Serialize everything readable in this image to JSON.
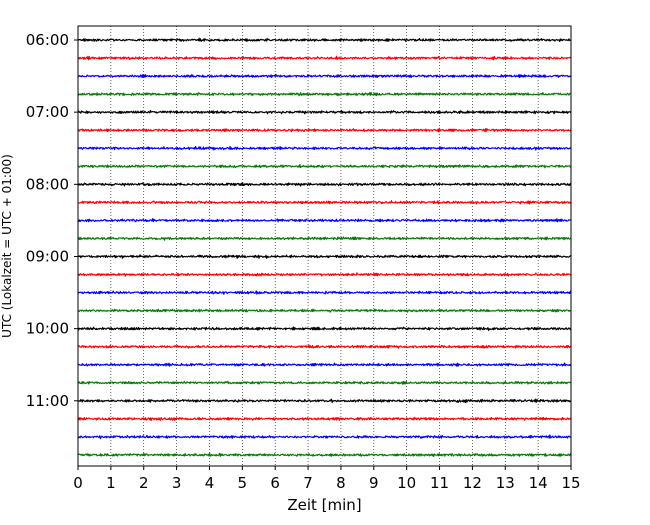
{
  "chart_data": {
    "type": "line",
    "title": "",
    "xlabel": "Zeit  [min]",
    "ylabel": "UTC (Lokalzeit = UTC + 01:00)",
    "xlim": [
      0,
      15
    ],
    "x_ticks": [
      0,
      1,
      2,
      3,
      4,
      5,
      6,
      7,
      8,
      9,
      10,
      11,
      12,
      13,
      14,
      15
    ],
    "x_tick_labels": [
      "0",
      "1",
      "2",
      "3",
      "4",
      "5",
      "6",
      "7",
      "8",
      "9",
      "10",
      "11",
      "12",
      "13",
      "14",
      "15"
    ],
    "y_tick_labels": [
      "06:00",
      "07:00",
      "08:00",
      "09:00",
      "10:00",
      "11:00"
    ],
    "y_tick_traces": [
      0,
      4,
      8,
      12,
      16,
      20
    ],
    "trace_interval_minutes": 15,
    "grid": "vertical dotted at each minute",
    "legend": "none",
    "series_color_cycle": [
      "#000000",
      "#ff0000",
      "#0000ff",
      "#008000"
    ],
    "series": [
      {
        "start": "06:00",
        "color": "#000000"
      },
      {
        "start": "06:15",
        "color": "#ff0000"
      },
      {
        "start": "06:30",
        "color": "#0000ff"
      },
      {
        "start": "06:45",
        "color": "#008000"
      },
      {
        "start": "07:00",
        "color": "#000000"
      },
      {
        "start": "07:15",
        "color": "#ff0000"
      },
      {
        "start": "07:30",
        "color": "#0000ff"
      },
      {
        "start": "07:45",
        "color": "#008000"
      },
      {
        "start": "08:00",
        "color": "#000000"
      },
      {
        "start": "08:15",
        "color": "#ff0000"
      },
      {
        "start": "08:30",
        "color": "#0000ff"
      },
      {
        "start": "08:45",
        "color": "#008000"
      },
      {
        "start": "09:00",
        "color": "#000000"
      },
      {
        "start": "09:15",
        "color": "#ff0000"
      },
      {
        "start": "09:30",
        "color": "#0000ff"
      },
      {
        "start": "09:45",
        "color": "#008000"
      },
      {
        "start": "10:00",
        "color": "#000000"
      },
      {
        "start": "10:15",
        "color": "#ff0000"
      },
      {
        "start": "10:30",
        "color": "#0000ff"
      },
      {
        "start": "10:45",
        "color": "#008000"
      },
      {
        "start": "11:00",
        "color": "#000000"
      },
      {
        "start": "11:15",
        "color": "#ff0000"
      },
      {
        "start": "11:30",
        "color": "#0000ff"
      },
      {
        "start": "11:45",
        "color": "#008000"
      }
    ]
  }
}
